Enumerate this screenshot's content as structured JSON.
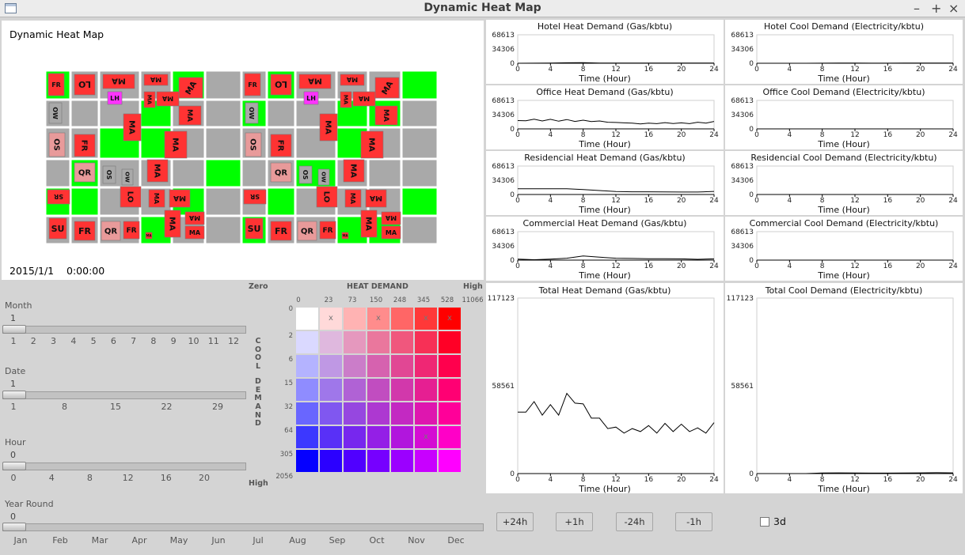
{
  "window": {
    "title": "Dynamic Heat Map",
    "minimize": "–",
    "maximize": "+",
    "close": "×"
  },
  "map": {
    "title": "Dynamic Heat Map",
    "date": "2015/1/1",
    "time": "0:00:00",
    "building_codes": [
      "FR",
      "LO",
      "MA",
      "LH",
      "OW",
      "OS",
      "QR",
      "SR",
      "SU"
    ]
  },
  "small_charts": [
    {
      "title": "Hotel Heat Demand (Gas/kbtu)"
    },
    {
      "title": "Hotel Cool Demand (Electricity/kbtu)"
    },
    {
      "title": "Office Heat Demand (Gas/kbtu)"
    },
    {
      "title": "Office Cool Demand (Electricity/kbtu)"
    },
    {
      "title": "Residencial Heat Demand (Gas/kbtu)"
    },
    {
      "title": "Residencial Cool Demand (Electricity/kbtu)"
    },
    {
      "title": "Commercial Heat Demand (Gas/kbtu)"
    },
    {
      "title": "Commercial Cool Demand (Electricity/kbtu)"
    }
  ],
  "chart_data": [
    {
      "type": "line",
      "title": "Hotel Heat Demand (Gas/kbtu)",
      "xlabel": "Time (Hour)",
      "ylabel": "",
      "ylim": [
        0,
        68613
      ],
      "yticks": [
        68613,
        34306,
        0
      ],
      "xticks": [
        0,
        4,
        8,
        12,
        16,
        20,
        24
      ],
      "x": [
        0,
        2,
        4,
        6,
        8,
        10,
        12,
        14,
        16,
        18,
        20,
        22,
        24
      ],
      "values": [
        0,
        200,
        400,
        1200,
        1500,
        600,
        500,
        400,
        500,
        600,
        500,
        400,
        500
      ]
    },
    {
      "type": "line",
      "title": "Hotel Cool Demand (Electricity/kbtu)",
      "xlabel": "Time (Hour)",
      "ylabel": "",
      "ylim": [
        0,
        68613
      ],
      "yticks": [
        68613,
        34306,
        0
      ],
      "xticks": [
        0,
        4,
        8,
        12,
        16,
        20,
        24
      ],
      "x": [
        0,
        2,
        4,
        6,
        8,
        10,
        12,
        14,
        16,
        18,
        20,
        22,
        24
      ],
      "values": [
        0,
        0,
        0,
        0,
        200,
        300,
        300,
        200,
        200,
        300,
        400,
        500,
        400
      ]
    },
    {
      "type": "line",
      "title": "Office Heat Demand (Gas/kbtu)",
      "xlabel": "Time (Hour)",
      "ylabel": "",
      "ylim": [
        0,
        68613
      ],
      "yticks": [
        68613,
        34306,
        0
      ],
      "xticks": [
        0,
        4,
        8,
        12,
        16,
        20,
        24
      ],
      "x": [
        0,
        1,
        2,
        3,
        4,
        5,
        6,
        7,
        8,
        9,
        10,
        11,
        12,
        13,
        14,
        15,
        16,
        17,
        18,
        19,
        20,
        21,
        22,
        23,
        24
      ],
      "values": [
        20000,
        19500,
        23500,
        19000,
        23000,
        18500,
        22500,
        18000,
        21000,
        17500,
        19000,
        16000,
        15500,
        14500,
        14000,
        12000,
        14000,
        12500,
        15000,
        13000,
        14500,
        12500,
        16000,
        14000,
        18000
      ]
    },
    {
      "type": "line",
      "title": "Office Cool Demand (Electricity/kbtu)",
      "xlabel": "Time (Hour)",
      "ylabel": "",
      "ylim": [
        0,
        68613
      ],
      "yticks": [
        68613,
        34306,
        0
      ],
      "xticks": [
        0,
        4,
        8,
        12,
        16,
        20,
        24
      ],
      "x": [
        0,
        4,
        8,
        12,
        16,
        20,
        24
      ],
      "values": [
        0,
        0,
        0,
        0,
        0,
        0,
        0
      ]
    },
    {
      "type": "line",
      "title": "Residencial Heat Demand (Gas/kbtu)",
      "xlabel": "Time (Hour)",
      "ylabel": "",
      "ylim": [
        0,
        68613
      ],
      "yticks": [
        68613,
        34306,
        0
      ],
      "xticks": [
        0,
        4,
        8,
        12,
        16,
        20,
        24
      ],
      "x": [
        0,
        2,
        4,
        6,
        8,
        10,
        12,
        14,
        16,
        18,
        20,
        22,
        24
      ],
      "values": [
        14000,
        14000,
        14000,
        13800,
        12000,
        9500,
        7000,
        6500,
        6500,
        6200,
        6000,
        6000,
        7500
      ]
    },
    {
      "type": "line",
      "title": "Residencial Cool Demand (Electricity/kbtu)",
      "xlabel": "Time (Hour)",
      "ylabel": "",
      "ylim": [
        0,
        68613
      ],
      "yticks": [
        68613,
        34306,
        0
      ],
      "xticks": [
        0,
        4,
        8,
        12,
        16,
        20,
        24
      ],
      "x": [
        0,
        4,
        8,
        12,
        16,
        20,
        24
      ],
      "values": [
        0,
        0,
        0,
        0,
        0,
        0,
        0
      ]
    },
    {
      "type": "line",
      "title": "Commercial Heat Demand (Gas/kbtu)",
      "xlabel": "Time (Hour)",
      "ylabel": "",
      "ylim": [
        0,
        68613
      ],
      "yticks": [
        68613,
        34306,
        0
      ],
      "xticks": [
        0,
        4,
        8,
        12,
        16,
        20,
        24
      ],
      "x": [
        0,
        2,
        4,
        6,
        8,
        10,
        12,
        14,
        16,
        18,
        20,
        22,
        24
      ],
      "values": [
        2500,
        1000,
        2500,
        4500,
        10000,
        7000,
        4500,
        4000,
        3500,
        3500,
        3000,
        2000,
        3000
      ]
    },
    {
      "type": "line",
      "title": "Commercial Cool Demand (Electricity/kbtu)",
      "xlabel": "Time (Hour)",
      "ylabel": "",
      "ylim": [
        0,
        68613
      ],
      "yticks": [
        68613,
        34306,
        0
      ],
      "xticks": [
        0,
        4,
        8,
        12,
        16,
        20,
        24
      ],
      "x": [
        0,
        4,
        8,
        12,
        16,
        20,
        24
      ],
      "values": [
        0,
        0,
        0,
        0,
        0,
        0,
        0
      ]
    },
    {
      "type": "line",
      "title": "Total Heat Demand (Gas/kbtu)",
      "xlabel": "Time (Hour)",
      "ylabel": "",
      "ylim": [
        0,
        117123
      ],
      "yticks": [
        117123,
        58561,
        0
      ],
      "xticks": [
        0,
        4,
        8,
        12,
        16,
        20,
        24
      ],
      "x": [
        0,
        1,
        2,
        3,
        4,
        5,
        6,
        7,
        8,
        9,
        10,
        11,
        12,
        13,
        14,
        15,
        16,
        17,
        18,
        19,
        20,
        21,
        22,
        23,
        24
      ],
      "values": [
        41000,
        41000,
        48000,
        39000,
        46000,
        39000,
        53500,
        47000,
        46500,
        37000,
        37000,
        30000,
        31000,
        27000,
        30000,
        28000,
        32000,
        27000,
        33500,
        28000,
        33000,
        28000,
        30500,
        27000,
        34000
      ]
    },
    {
      "type": "line",
      "title": "Total Cool Demand (Electricity/kbtu)",
      "xlabel": "Time (Hour)",
      "ylabel": "",
      "ylim": [
        0,
        117123
      ],
      "yticks": [
        117123,
        58561,
        0
      ],
      "xticks": [
        0,
        4,
        8,
        12,
        16,
        20,
        24
      ],
      "x": [
        0,
        2,
        4,
        6,
        8,
        10,
        12,
        14,
        16,
        18,
        20,
        22,
        24
      ],
      "values": [
        0,
        0,
        0,
        0,
        400,
        500,
        400,
        300,
        300,
        400,
        500,
        600,
        500
      ]
    }
  ],
  "big_charts": [
    {
      "title": "Total Heat Demand (Gas/kbtu)"
    },
    {
      "title": "Total Cool Demand (Electricity/kbtu)"
    }
  ],
  "sliders": {
    "month": {
      "label": "Month",
      "value": "1",
      "ticks": [
        "1",
        "2",
        "3",
        "4",
        "5",
        "6",
        "7",
        "8",
        "9",
        "10",
        "11",
        "12"
      ]
    },
    "date": {
      "label": "Date",
      "value": "1",
      "ticks": [
        "1",
        "8",
        "15",
        "22",
        "29"
      ]
    },
    "hour": {
      "label": "Hour",
      "value": "0",
      "ticks": [
        "0",
        "4",
        "8",
        "12",
        "16",
        "20"
      ]
    },
    "year_round": {
      "label": "Year Round",
      "value": "0",
      "ticks": [
        "Jan",
        "Feb",
        "Mar",
        "Apr",
        "May",
        "Jun",
        "Jul",
        "Aug",
        "Sep",
        "Oct",
        "Nov",
        "Dec"
      ]
    }
  },
  "legend": {
    "zero_label": "Zero",
    "high_label_top": "High",
    "high_label_bottom": "High",
    "heat_demand_label": "HEAT DEMAND",
    "cool_demand_label": "COOL DEMAND",
    "heat_ticks": [
      "0",
      "23",
      "73",
      "150",
      "248",
      "345",
      "528",
      "11066"
    ],
    "cool_ticks": [
      "0",
      "2",
      "6",
      "15",
      "32",
      "64",
      "305",
      "2056"
    ],
    "marker": "x"
  },
  "buttons": {
    "plus24": "+24h",
    "plus1": "+1h",
    "minus24": "-24h",
    "minus1": "-1h"
  },
  "toggle_3d": {
    "label": "3d",
    "checked": false
  },
  "colors": {
    "park": "#00ff00",
    "block": "#a9a9a9",
    "building_red": "#ff3333",
    "building_magenta": "#ff33ff",
    "building_pink": "#e89a9a",
    "chart_line": "#000000"
  }
}
